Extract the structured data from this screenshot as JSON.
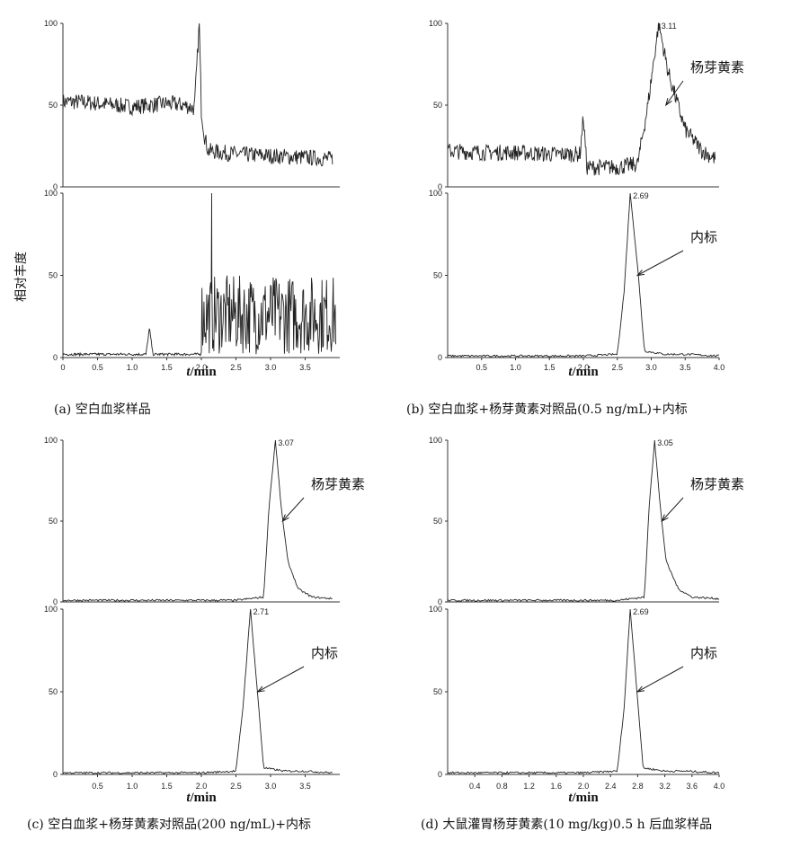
{
  "chart_data": [
    {
      "id": "a",
      "type": "line",
      "caption": "(a) 空白血浆样品",
      "xlabel_italic": "t",
      "xlabel_rest": "/min",
      "ylabel": "相对丰度",
      "xlim": [
        0,
        4.0
      ],
      "x_ticks": [
        "0",
        "0.5",
        "1.0",
        "1.5",
        "2.0",
        "2.5",
        "3.0",
        "3.5"
      ],
      "y_ticks": [
        "0",
        "50",
        "100"
      ],
      "panels": [
        {
          "name": "top",
          "ylim": [
            0,
            100
          ],
          "peak_label": "",
          "annotation": "",
          "series": {
            "x": [
              0,
              0.25,
              0.5,
              0.75,
              1.0,
              1.25,
              1.5,
              1.75,
              1.9,
              1.97,
              2.0,
              2.05,
              2.1,
              2.5,
              3.0,
              3.5,
              3.9
            ],
            "y": [
              52,
              52,
              51,
              50,
              49,
              50,
              51,
              50,
              48,
              100,
              47,
              30,
              22,
              20,
              19,
              18,
              17
            ]
          }
        },
        {
          "name": "bottom",
          "ylim": [
            0,
            100
          ],
          "peak_label": "",
          "annotation": "",
          "series": {
            "x": [
              0,
              1.2,
              1.25,
              1.3,
              2.0,
              2.15,
              2.5,
              3.0,
              3.5,
              3.95
            ],
            "y": [
              2,
              2,
              18,
              2,
              2,
              100,
              40,
              38,
              45,
              40
            ]
          }
        }
      ]
    },
    {
      "id": "b",
      "type": "line",
      "caption": "(b) 空白血浆+杨芽黄素对照品(0.5 ng/mL)+内标",
      "xlabel_italic": "t",
      "xlabel_rest": "/min",
      "xlim": [
        0,
        4.0
      ],
      "x_ticks": [
        "0.5",
        "1.0",
        "1.5",
        "2.0",
        "2.5",
        "3.0",
        "3.5",
        "4.0"
      ],
      "y_ticks": [
        "0",
        "50",
        "100"
      ],
      "panels": [
        {
          "name": "top",
          "ylim": [
            0,
            100
          ],
          "peak_label": "3.11",
          "annotation": "杨芽黄素",
          "series": {
            "x": [
              0,
              0.5,
              1.0,
              1.5,
              1.95,
              2.0,
              2.05,
              2.1,
              2.5,
              2.8,
              2.95,
              3.11,
              3.25,
              3.5,
              3.75,
              3.95
            ],
            "y": [
              22,
              21,
              21,
              20,
              20,
              43,
              12,
              12,
              12,
              14,
              50,
              100,
              70,
              35,
              22,
              17
            ]
          }
        },
        {
          "name": "bottom",
          "ylim": [
            0,
            100
          ],
          "peak_label": "2.69",
          "annotation": "内标",
          "series": {
            "x": [
              0,
              2.0,
              2.5,
              2.6,
              2.69,
              2.8,
              2.9,
              3.2,
              3.5,
              4.0
            ],
            "y": [
              1,
              1,
              2,
              40,
              100,
              55,
              4,
              2,
              2,
              1
            ]
          }
        }
      ]
    },
    {
      "id": "c",
      "type": "line",
      "caption": "(c) 空白血浆+杨芽黄素对照品(200 ng/mL)+内标",
      "xlabel_italic": "t",
      "xlabel_rest": "/min",
      "xlim": [
        0,
        4.0
      ],
      "x_ticks": [
        "0.5",
        "1.0",
        "1.5",
        "2.0",
        "2.5",
        "3.0",
        "3.5"
      ],
      "y_ticks": [
        "0",
        "50",
        "100"
      ],
      "panels": [
        {
          "name": "top",
          "ylim": [
            0,
            100
          ],
          "peak_label": "3.07",
          "annotation": "杨芽黄素",
          "series": {
            "x": [
              0,
              2.5,
              2.9,
              2.98,
              3.07,
              3.15,
              3.25,
              3.4,
              3.6,
              3.9
            ],
            "y": [
              1,
              1,
              3,
              60,
              100,
              60,
              25,
              8,
              3,
              2
            ]
          }
        },
        {
          "name": "bottom",
          "ylim": [
            0,
            100
          ],
          "peak_label": "2.71",
          "annotation": "内标",
          "series": {
            "x": [
              0,
              2.0,
              2.5,
              2.6,
              2.71,
              2.8,
              2.9,
              3.2,
              3.5,
              3.9
            ],
            "y": [
              1,
              1,
              2,
              40,
              100,
              55,
              4,
              2,
              2,
              1
            ]
          }
        }
      ]
    },
    {
      "id": "d",
      "type": "line",
      "caption": "(d) 大鼠灌胃杨芽黄素(10 mg/kg)0.5 h 后血浆样品",
      "xlabel_italic": "t",
      "xlabel_rest": "/min",
      "xlim": [
        0,
        4.0
      ],
      "x_ticks": [
        "0.4",
        "0.8",
        "1.2",
        "1.6",
        "2.0",
        "2.4",
        "2.8",
        "3.2",
        "3.6",
        "4.0"
      ],
      "y_ticks": [
        "0",
        "50",
        "100"
      ],
      "panels": [
        {
          "name": "top",
          "ylim": [
            0,
            100
          ],
          "peak_label": "3.05",
          "annotation": "杨芽黄素",
          "series": {
            "x": [
              0,
              2.5,
              2.9,
              2.97,
              3.05,
              3.13,
              3.22,
              3.4,
              3.6,
              4.0
            ],
            "y": [
              1,
              1,
              3,
              60,
              100,
              60,
              25,
              8,
              3,
              2
            ]
          }
        },
        {
          "name": "bottom",
          "ylim": [
            0,
            100
          ],
          "peak_label": "2.69",
          "annotation": "内标",
          "series": {
            "x": [
              0,
              2.0,
              2.5,
              2.6,
              2.69,
              2.78,
              2.88,
              3.2,
              3.5,
              4.0
            ],
            "y": [
              1,
              1,
              2,
              40,
              100,
              55,
              4,
              2,
              2,
              1
            ]
          }
        }
      ]
    }
  ]
}
